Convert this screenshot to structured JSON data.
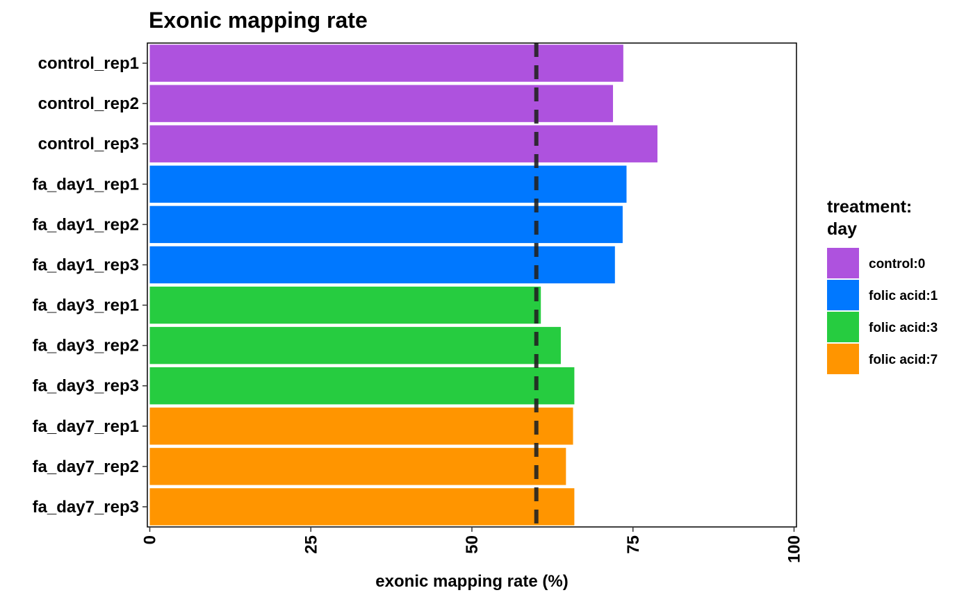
{
  "chart_data": {
    "type": "bar",
    "orientation": "horizontal",
    "title": "Exonic mapping rate",
    "xlabel": "exonic mapping rate (%)",
    "ylabel": "",
    "xlim": [
      0,
      100
    ],
    "x_ticks": [
      "0",
      "25",
      "50",
      "75",
      "100"
    ],
    "categories": [
      "control_rep1",
      "control_rep2",
      "control_rep3",
      "fa_day1_rep1",
      "fa_day1_rep2",
      "fa_day1_rep3",
      "fa_day3_rep1",
      "fa_day3_rep2",
      "fa_day3_rep3",
      "fa_day7_rep1",
      "fa_day7_rep2",
      "fa_day7_rep3"
    ],
    "values": [
      73.5,
      71.9,
      78.8,
      74.0,
      73.4,
      72.2,
      60.7,
      63.8,
      65.9,
      65.7,
      64.6,
      65.9
    ],
    "groups": [
      "control:0",
      "control:0",
      "control:0",
      "folic acid:1",
      "folic acid:1",
      "folic acid:1",
      "folic acid:3",
      "folic acid:3",
      "folic acid:3",
      "folic acid:7",
      "folic acid:7",
      "folic acid:7"
    ],
    "reference_line": {
      "value": 60,
      "style": "dashed"
    },
    "legend": {
      "title_lines": [
        "treatment:",
        "day"
      ],
      "placement": "right",
      "entries": [
        {
          "label": "control:0",
          "color": "#AE52DE"
        },
        {
          "label": "folic acid:1",
          "color": "#0078FF"
        },
        {
          "label": "folic acid:3",
          "color": "#26CC40"
        },
        {
          "label": "folic acid:7",
          "color": "#FF9500"
        }
      ]
    },
    "grid": false
  }
}
